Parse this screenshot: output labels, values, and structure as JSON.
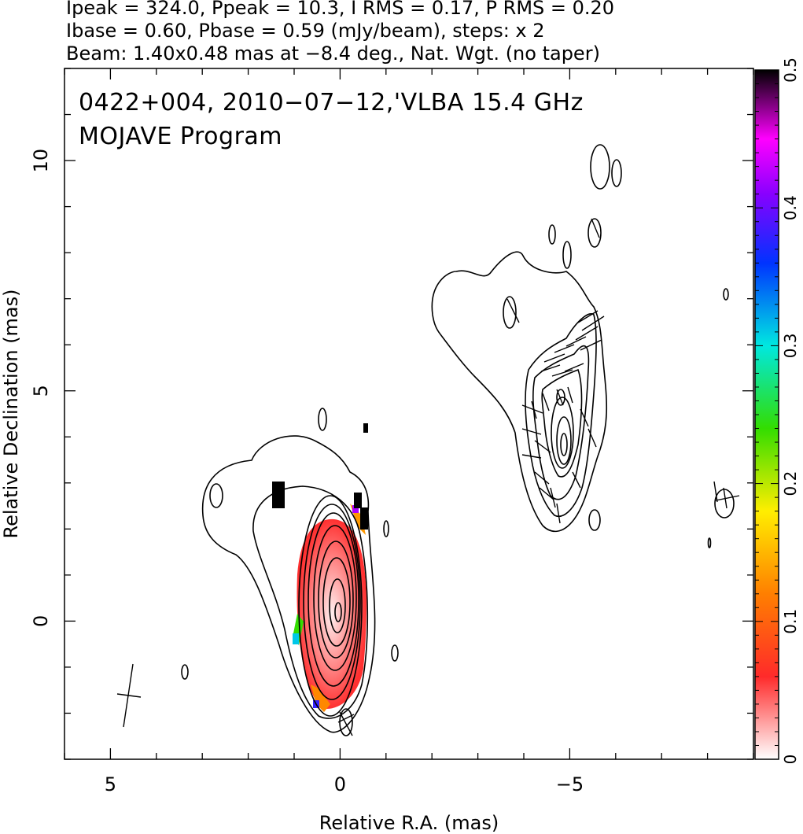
{
  "header": {
    "line1": "Ipeak = 324.0, Ppeak = 10.3, I RMS = 0.17, P RMS = 0.20",
    "line2": "Ibase = 0.60, Pbase = 0.59 (mJy/beam), steps: x 2",
    "line3": "Beam: 1.40x0.48 mas at −8.4 deg., Nat. Wgt. (no taper)"
  },
  "plot_title": {
    "line1": "0422+004, 2010−07−12,'VLBA 15.4 GHz",
    "line2": "MOJAVE Program"
  },
  "chart_data": {
    "type": "heatmap",
    "xlabel": "Relative R.A. (mas)",
    "ylabel": "Relative Declination (mas)",
    "xlim": [
      6,
      -9
    ],
    "ylim": [
      -3,
      12
    ],
    "x_ticks": [
      5,
      0,
      -5
    ],
    "x_tick_labels": [
      "5",
      "0",
      "−5"
    ],
    "y_ticks": [
      0,
      5,
      10
    ],
    "y_tick_labels": [
      "0",
      "5",
      "10"
    ],
    "colorbar": {
      "range": [
        0,
        0.5
      ],
      "ticks": [
        0,
        0.1,
        0.2,
        0.3,
        0.4,
        0.5
      ],
      "tick_labels": [
        "0",
        "0.1",
        "0.2",
        "0.3",
        "0.4",
        "0.5"
      ],
      "colormap": [
        "#ffffff",
        "#ff0000",
        "#ffff00",
        "#00ff00",
        "#00ffff",
        "#0000ff",
        "#ff00ff",
        "#000000"
      ]
    },
    "stokes_I": {
      "peak_mJy_per_beam": 324.0,
      "base_mJy_per_beam": 0.6,
      "rms_mJy_per_beam": 0.17,
      "contour_step_factor": 2
    },
    "polarization": {
      "peak_mJy_per_beam": 10.3,
      "base_mJy_per_beam": 0.59,
      "rms_mJy_per_beam": 0.2
    },
    "core": {
      "ra": 0.0,
      "dec": 0.0
    },
    "jet_component": {
      "ra": -5.0,
      "dec": 4.0
    },
    "beam": {
      "major_mas": 1.4,
      "minor_mas": 0.48,
      "pa_deg": -8.4,
      "weighting": "Natural",
      "taper": "none"
    }
  }
}
